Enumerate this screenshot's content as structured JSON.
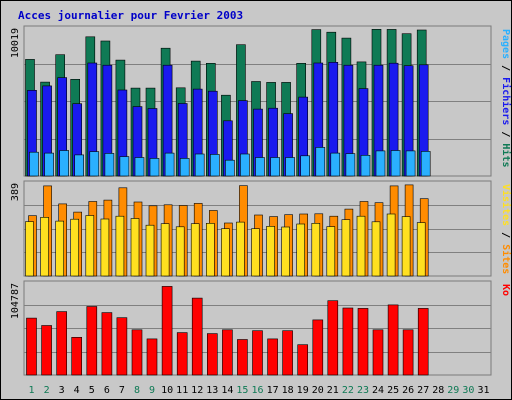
{
  "chart_data": {
    "type": "bar",
    "title": "Acces journalier pour Fevrier 2003",
    "days": [
      "1",
      "2",
      "3",
      "4",
      "5",
      "6",
      "7",
      "8",
      "9",
      "10",
      "11",
      "12",
      "13",
      "14",
      "15",
      "16",
      "17",
      "18",
      "19",
      "20",
      "21",
      "22",
      "23",
      "24",
      "25",
      "26",
      "27",
      "28",
      "29",
      "30",
      "31"
    ],
    "weekend_days": [
      "1",
      "2",
      "8",
      "9",
      "15",
      "16",
      "22",
      "23",
      "29",
      "30"
    ],
    "panels": [
      {
        "id": "top",
        "ymax_label": "10019",
        "ymax": 10019,
        "series": [
          {
            "name": "Hits",
            "color": "#0f7a55",
            "values": [
              7950,
              6400,
              8270,
              6590,
              9490,
              9200,
              7900,
              5990,
              5990,
              8710,
              6010,
              7830,
              7680,
              5510,
              8950,
              6440,
              6380,
              6380,
              7680,
              9980,
              9800,
              9400,
              7780,
              10000,
              9990,
              9700,
              9950
            ]
          },
          {
            "name": "Fichiers",
            "color": "#1a1aee",
            "values": [
              5840,
              6140,
              6710,
              4930,
              7700,
              7550,
              5860,
              4730,
              4600,
              7550,
              4940,
              5920,
              5780,
              3760,
              5140,
              4560,
              4620,
              4250,
              5380,
              7700,
              7750,
              7550,
              5960,
              7550,
              7690,
              7520,
              7580
            ]
          },
          {
            "name": "Pages",
            "color": "#2ab0ff",
            "values": [
              1620,
              1560,
              1740,
              1440,
              1660,
              1540,
              1320,
              1260,
              1200,
              1560,
              1200,
              1500,
              1470,
              1080,
              1500,
              1260,
              1260,
              1260,
              1380,
              1950,
              1560,
              1530,
              1410,
              1710,
              1740,
              1710,
              1680
            ]
          }
        ],
        "side_label": "Pages / Fichiers / Hits"
      },
      {
        "id": "mid",
        "ymax_label": "389",
        "ymax": 389,
        "series": [
          {
            "name": "Sites",
            "color": "#ff8c00",
            "values": [
              255,
              381,
              305,
              270,
              315,
              321,
              373,
              313,
              297,
              301,
              298,
              307,
              277,
              224,
              382,
              258,
              251,
              259,
              262,
              263,
              253,
              283,
              315,
              310,
              381,
              385,
              327
            ]
          },
          {
            "name": "Visites",
            "color": "#ffe020",
            "values": [
              230,
              248,
              232,
              240,
              256,
              241,
              253,
              243,
              215,
              221,
              208,
              221,
              223,
              200,
              228,
              200,
              210,
              207,
              220,
              223,
              209,
              238,
              253,
              229,
              262,
              251,
              226
            ]
          }
        ],
        "side_label": "Sites / Visites"
      },
      {
        "id": "bot",
        "ymax_label": "104787",
        "ymax": 104787,
        "series": [
          {
            "name": "Ko",
            "color": "#ff0000",
            "values": [
              65500,
              57000,
              73000,
              43400,
              78900,
              71800,
              66000,
              52000,
              41600,
              102000,
              48800,
              88500,
              47700,
              52000,
              40900,
              51000,
              41600,
              51000,
              34900,
              63500,
              85600,
              77100,
              76700,
              52000,
              80700,
              52000,
              76700
            ]
          }
        ],
        "side_label": "Ko"
      }
    ]
  }
}
